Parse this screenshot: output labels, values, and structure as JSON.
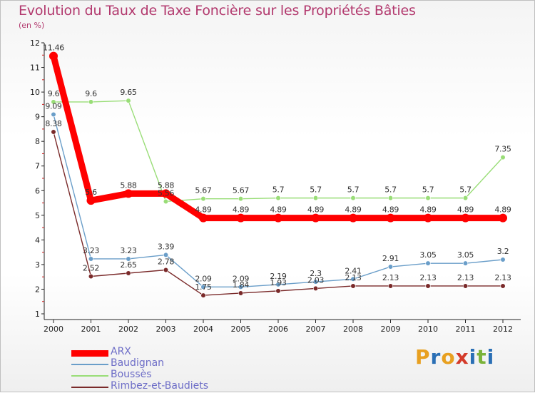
{
  "chart_data": {
    "type": "line",
    "title": "Evolution du Taux de Taxe Foncière sur les Propriétés Bâties",
    "ylabel": "(en %)",
    "xlabel": "",
    "categories": [
      "2000",
      "2001",
      "2002",
      "2003",
      "2004",
      "2005",
      "2006",
      "2007",
      "2008",
      "2009",
      "2010",
      "2011",
      "2012"
    ],
    "y_ticks": [
      "1",
      "2",
      "3",
      "4",
      "5",
      "6",
      "7",
      "8",
      "9",
      "10",
      "11",
      "12"
    ],
    "ylim": [
      1,
      12
    ],
    "grid": false,
    "legend_position": "bottom-left",
    "series": [
      {
        "name": "ARX",
        "color": "#ff0000",
        "values": [
          11.46,
          5.6,
          5.88,
          5.88,
          4.89,
          4.89,
          4.89,
          4.89,
          4.89,
          4.89,
          4.89,
          4.89,
          4.89
        ],
        "labels": [
          "11.46",
          "5.6",
          "5.88",
          "5.88",
          "4.89",
          "4.89",
          "4.89",
          "4.89",
          "4.89",
          "4.89",
          "4.89",
          "4.89",
          "4.89"
        ]
      },
      {
        "name": "Baudignan",
        "color": "#6a9ec9",
        "values": [
          9.09,
          3.23,
          3.23,
          3.39,
          2.09,
          2.09,
          2.19,
          2.3,
          2.41,
          2.91,
          3.05,
          3.05,
          3.2
        ],
        "labels": [
          "9.09",
          "3.23",
          "3.23",
          "3.39",
          "2.09",
          "2.09",
          "2.19",
          "2.3",
          "2.41",
          "2.91",
          "3.05",
          "3.05",
          "3.2"
        ]
      },
      {
        "name": "Boussès",
        "color": "#99dd77",
        "values": [
          9.6,
          9.6,
          9.65,
          5.56,
          5.67,
          5.67,
          5.7,
          5.7,
          5.7,
          5.7,
          5.7,
          5.7,
          7.35
        ],
        "labels": [
          "9.6",
          "9.6",
          "9.65",
          "5.56",
          "5.67",
          "5.67",
          "5.7",
          "5.7",
          "5.7",
          "5.7",
          "5.7",
          "5.7",
          "7.35"
        ]
      },
      {
        "name": "Rimbez-et-Baudiets",
        "color": "#7a2a2a",
        "values": [
          8.38,
          2.52,
          2.65,
          2.78,
          1.75,
          1.84,
          1.93,
          2.03,
          2.13,
          2.13,
          2.13,
          2.13,
          2.13
        ],
        "labels": [
          "8.38",
          "2.52",
          "2.65",
          "2.78",
          "1.75",
          "1.84",
          "1.93",
          "2.03",
          "2.13",
          "2.13",
          "2.13",
          "2.13",
          "2.13"
        ]
      }
    ]
  },
  "logo": {
    "text": "Proxiti",
    "colors": [
      "#e8a020",
      "#2a6fb5",
      "#e8a020",
      "#d43b2a",
      "#2a6fb5",
      "#7bb33a",
      "#2a6fb5"
    ]
  }
}
